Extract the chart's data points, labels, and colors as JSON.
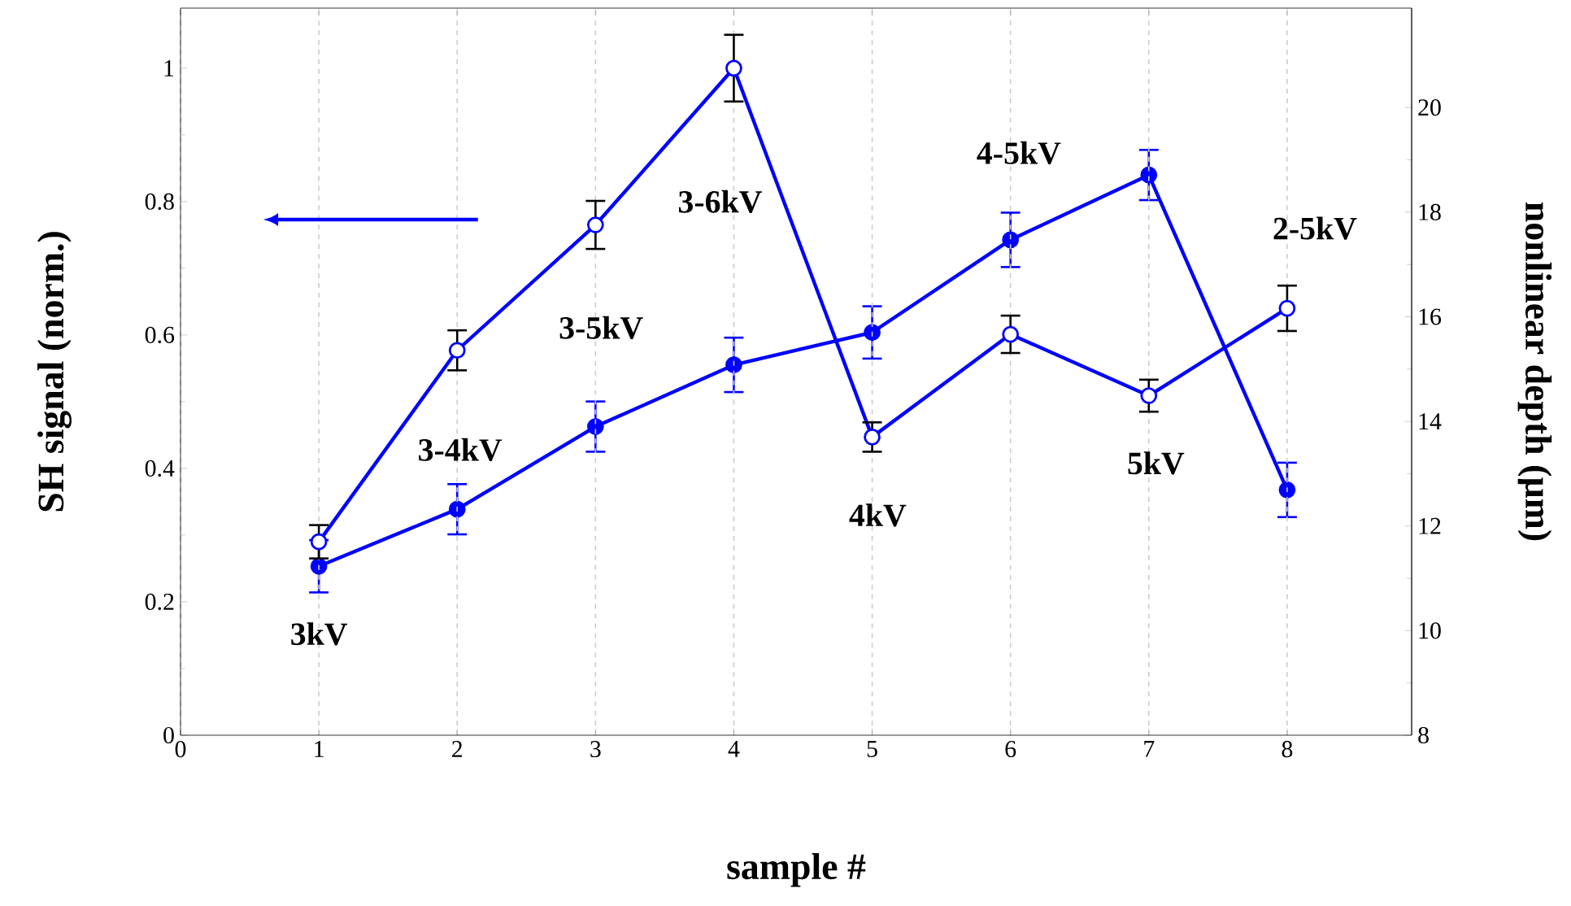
{
  "chart_data": {
    "type": "line",
    "xlabel": "sample #",
    "ylabel": "SH signal (norm.)",
    "y2label": "nonlinear depth (µm)",
    "x": [
      1,
      2,
      3,
      4,
      5,
      6,
      7,
      8
    ],
    "xlim": [
      0,
      8.9
    ],
    "xticks": [
      0,
      1,
      2,
      3,
      4,
      5,
      6,
      7,
      8
    ],
    "ylim": [
      0,
      1.09
    ],
    "yticks": [
      0,
      0.2,
      0.4,
      0.6,
      0.8,
      1
    ],
    "y2lim": [
      8,
      21.9
    ],
    "y2ticks": [
      8,
      10,
      12,
      14,
      16,
      18,
      20
    ],
    "grid": "x",
    "marker": "circle",
    "line_style": "solid",
    "series": [
      {
        "color": "#0000ff",
        "values": [
          0.29,
          0.577,
          0.765,
          1.0,
          0.447,
          0.601,
          0.509,
          0.64
        ],
        "errors": [
          0.025,
          0.03,
          0.036,
          0.05,
          0.022,
          0.028,
          0.024,
          0.034
        ]
      },
      {
        "color": "#0000ff",
        "axis": "y2",
        "values": [
          11.23,
          12.32,
          13.9,
          15.08,
          15.7,
          17.47,
          18.71,
          12.69
        ],
        "errors": [
          0.5,
          0.48,
          0.48,
          0.52,
          0.5,
          0.52,
          0.48,
          0.52
        ]
      }
    ],
    "annotations": [
      "3kV",
      "3-4kV",
      "3-5kV",
      "3-6kV",
      "4kV",
      "4-5kV",
      "5kV",
      "2-5kV"
    ]
  }
}
